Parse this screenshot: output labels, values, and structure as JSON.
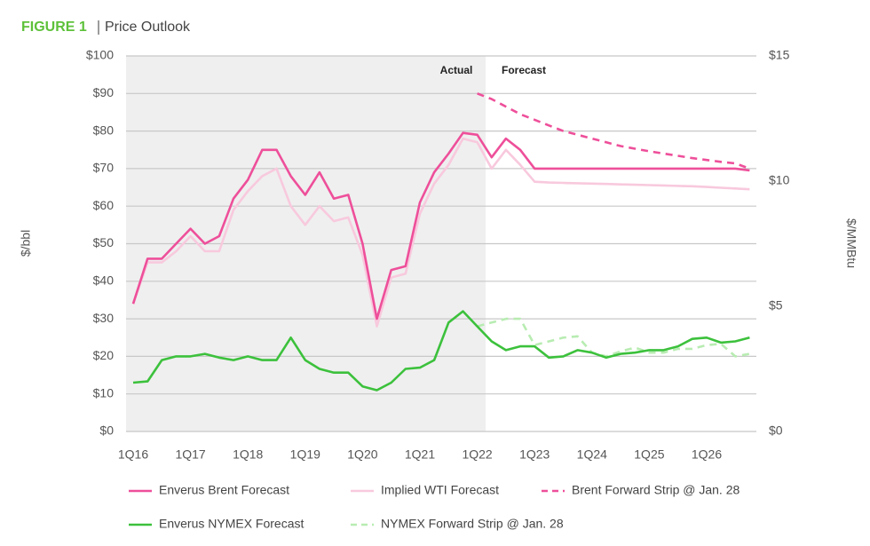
{
  "chart_data": {
    "type": "line",
    "figure_label": "FIGURE 1",
    "title": "Price Outlook",
    "ylabel": "$/bbl",
    "y2label": "$/MMBtu",
    "annotations": [
      "Actual",
      "Forecast"
    ],
    "categories": [
      "1Q16",
      null,
      null,
      null,
      "1Q17",
      null,
      null,
      null,
      "1Q18",
      null,
      null,
      null,
      "1Q19",
      null,
      null,
      null,
      "1Q20",
      null,
      null,
      null,
      "1Q21",
      null,
      null,
      null,
      "1Q22",
      null,
      null,
      null,
      "1Q23",
      null,
      null,
      null,
      "1Q24",
      null,
      null,
      null,
      "1Q25",
      null,
      null,
      null,
      "1Q26",
      null,
      null,
      null
    ],
    "ylim": [
      0,
      100
    ],
    "yticks": [
      {
        "value": 0,
        "label": "$0"
      },
      {
        "value": 10,
        "label": "$10"
      },
      {
        "value": 20,
        "label": "$20"
      },
      {
        "value": 30,
        "label": "$30"
      },
      {
        "value": 40,
        "label": "$40"
      },
      {
        "value": 50,
        "label": "$50"
      },
      {
        "value": 60,
        "label": "$60"
      },
      {
        "value": 70,
        "label": "$70"
      },
      {
        "value": 80,
        "label": "$80"
      },
      {
        "value": 90,
        "label": "$90"
      },
      {
        "value": 100,
        "label": "$100"
      }
    ],
    "y2lim": [
      0,
      15
    ],
    "y2ticks": [
      {
        "value": 0,
        "label": "$0"
      },
      {
        "value": 5,
        "label": "$5"
      },
      {
        "value": 10,
        "label": "$10"
      },
      {
        "value": 15,
        "label": "$15"
      }
    ],
    "grid": true,
    "series": [
      {
        "name": "Enverus Brent Forecast",
        "color": "#ee4f9a",
        "dash": false,
        "values": [
          34,
          46,
          46,
          50,
          54,
          50,
          52,
          62,
          67,
          75,
          75,
          68,
          63,
          69,
          62,
          63,
          50,
          30,
          43,
          44,
          61,
          69,
          74,
          79.5,
          79,
          73,
          78,
          75,
          70,
          70,
          70,
          70,
          70,
          70,
          70,
          70,
          70,
          70,
          70,
          70,
          70,
          70,
          70,
          69.5
        ]
      },
      {
        "name": "Implied WTI Forecast",
        "color": "#f8c9dd",
        "dash": false,
        "values": [
          34,
          45,
          45,
          48,
          52,
          48,
          48,
          59,
          64,
          68,
          70,
          60,
          55,
          60,
          56,
          57,
          47,
          28,
          41,
          42,
          58,
          66,
          71,
          78,
          77,
          70,
          75,
          71,
          66.5,
          66.3,
          66.2,
          66.1,
          66,
          65.9,
          65.8,
          65.7,
          65.6,
          65.5,
          65.4,
          65.3,
          65.1,
          64.9,
          64.7,
          64.5
        ]
      },
      {
        "name": "Brent Forward Strip @ Jan. 28",
        "color": "#ee4f9a",
        "dash": true,
        "values": [
          null,
          null,
          null,
          null,
          null,
          null,
          null,
          null,
          null,
          null,
          null,
          null,
          null,
          null,
          null,
          null,
          null,
          null,
          null,
          null,
          null,
          null,
          null,
          null,
          90,
          88.5,
          86.5,
          84.5,
          83,
          81.5,
          80,
          79,
          78,
          77,
          76,
          75.3,
          74.6,
          74,
          73.4,
          72.8,
          72.3,
          71.8,
          71.4,
          70
        ]
      },
      {
        "name": "Enverus NYMEX Forecast",
        "color": "#3cc13c",
        "dash": false,
        "axis": "y2",
        "values": [
          1.95,
          2.0,
          2.85,
          3.0,
          3.0,
          3.1,
          2.95,
          2.85,
          3.0,
          2.85,
          2.85,
          3.75,
          2.85,
          2.5,
          2.35,
          2.35,
          1.8,
          1.65,
          1.95,
          2.5,
          2.55,
          2.85,
          4.35,
          4.8,
          4.2,
          3.6,
          3.25,
          3.4,
          3.4,
          2.95,
          3.0,
          3.25,
          3.15,
          2.95,
          3.1,
          3.15,
          3.25,
          3.25,
          3.4,
          3.7,
          3.75,
          3.55,
          3.6,
          3.75
        ]
      },
      {
        "name": "NYMEX Forward Strip @ Jan. 28",
        "color": "#b8ecb2",
        "dash": true,
        "axis": "y2",
        "values": [
          null,
          null,
          null,
          null,
          null,
          null,
          null,
          null,
          null,
          null,
          null,
          null,
          null,
          null,
          null,
          null,
          null,
          null,
          null,
          null,
          null,
          null,
          null,
          null,
          4.2,
          4.35,
          4.5,
          4.5,
          3.45,
          3.6,
          3.75,
          3.8,
          3.15,
          3.0,
          3.2,
          3.35,
          3.15,
          3.15,
          3.3,
          3.3,
          3.45,
          3.5,
          3.0,
          3.1
        ]
      }
    ]
  }
}
